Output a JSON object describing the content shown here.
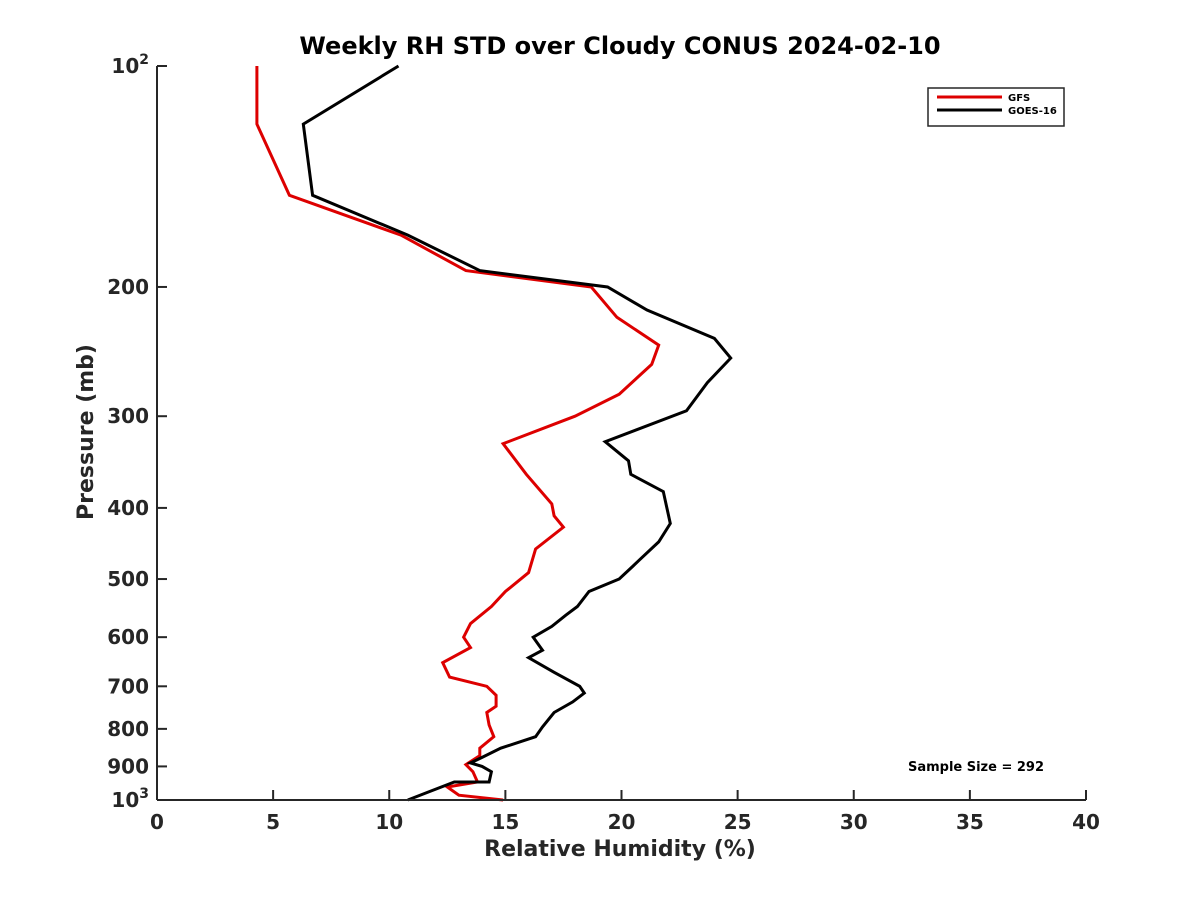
{
  "chart_data": {
    "type": "line",
    "title": "Weekly RH STD over Cloudy CONUS 2024-02-10",
    "xlabel": "Relative Humidity (%)",
    "ylabel": "Pressure (mb)",
    "xlim": [
      0,
      40
    ],
    "ylim": [
      100,
      1000
    ],
    "yscale": "log",
    "x_ticks": [
      0,
      5,
      10,
      15,
      20,
      25,
      30,
      35,
      40
    ],
    "x_tick_labels": [
      "0",
      "5",
      "10",
      "15",
      "20",
      "25",
      "30",
      "35",
      "40"
    ],
    "y_ticks": [
      100,
      200,
      300,
      400,
      500,
      600,
      700,
      800,
      900,
      1000
    ],
    "y_tick_labels": [
      {
        "base": "10",
        "exp": "2"
      },
      {
        "base": "200"
      },
      {
        "base": "300"
      },
      {
        "base": "400"
      },
      {
        "base": "500"
      },
      {
        "base": "600"
      },
      {
        "base": "700"
      },
      {
        "base": "800"
      },
      {
        "base": "900"
      },
      {
        "base": "10",
        "exp": "3"
      }
    ],
    "grid": false,
    "legend_position": "top-right",
    "annotation": "Sample Size = 292",
    "series": [
      {
        "name": "GFS",
        "color": "#dd0000",
        "points": [
          [
            4.3,
            100
          ],
          [
            4.3,
            120
          ],
          [
            5.7,
            150
          ],
          [
            10.5,
            170
          ],
          [
            13.3,
            190
          ],
          [
            18.7,
            200
          ],
          [
            19.8,
            220
          ],
          [
            21.6,
            240
          ],
          [
            21.3,
            255
          ],
          [
            19.9,
            280
          ],
          [
            18.0,
            300
          ],
          [
            14.9,
            327
          ],
          [
            15.9,
            360
          ],
          [
            17.0,
            395
          ],
          [
            17.1,
            410
          ],
          [
            17.5,
            425
          ],
          [
            16.3,
            455
          ],
          [
            16.0,
            490
          ],
          [
            15.0,
            520
          ],
          [
            14.4,
            545
          ],
          [
            13.5,
            575
          ],
          [
            13.2,
            600
          ],
          [
            13.5,
            620
          ],
          [
            12.3,
            650
          ],
          [
            12.6,
            680
          ],
          [
            14.2,
            700
          ],
          [
            14.6,
            720
          ],
          [
            14.6,
            745
          ],
          [
            14.2,
            760
          ],
          [
            14.3,
            790
          ],
          [
            14.5,
            820
          ],
          [
            13.9,
            850
          ],
          [
            13.9,
            870
          ],
          [
            13.3,
            895
          ],
          [
            13.6,
            915
          ],
          [
            13.8,
            945
          ],
          [
            12.5,
            960
          ],
          [
            13.0,
            985
          ],
          [
            14.9,
            1000
          ]
        ]
      },
      {
        "name": "GOES-16",
        "color": "#000000",
        "points": [
          [
            10.4,
            100
          ],
          [
            6.3,
            120
          ],
          [
            6.7,
            150
          ],
          [
            10.8,
            170
          ],
          [
            13.9,
            190
          ],
          [
            19.4,
            200
          ],
          [
            21.1,
            215
          ],
          [
            24.0,
            235
          ],
          [
            24.7,
            250
          ],
          [
            23.7,
            270
          ],
          [
            22.8,
            295
          ],
          [
            19.3,
            325
          ],
          [
            20.3,
            345
          ],
          [
            20.4,
            360
          ],
          [
            21.8,
            380
          ],
          [
            22.1,
            420
          ],
          [
            21.6,
            445
          ],
          [
            20.8,
            470
          ],
          [
            20.5,
            480
          ],
          [
            19.9,
            500
          ],
          [
            18.6,
            520
          ],
          [
            18.1,
            545
          ],
          [
            17.6,
            560
          ],
          [
            17.0,
            580
          ],
          [
            16.2,
            600
          ],
          [
            16.6,
            625
          ],
          [
            16.0,
            640
          ],
          [
            17.1,
            670
          ],
          [
            18.2,
            700
          ],
          [
            18.4,
            715
          ],
          [
            17.9,
            735
          ],
          [
            17.1,
            760
          ],
          [
            16.6,
            795
          ],
          [
            16.3,
            820
          ],
          [
            14.8,
            850
          ],
          [
            14.0,
            875
          ],
          [
            13.5,
            890
          ],
          [
            14.0,
            900
          ],
          [
            14.4,
            915
          ],
          [
            14.3,
            945
          ],
          [
            12.8,
            945
          ],
          [
            11.7,
            975
          ],
          [
            10.8,
            1000
          ]
        ]
      }
    ]
  }
}
